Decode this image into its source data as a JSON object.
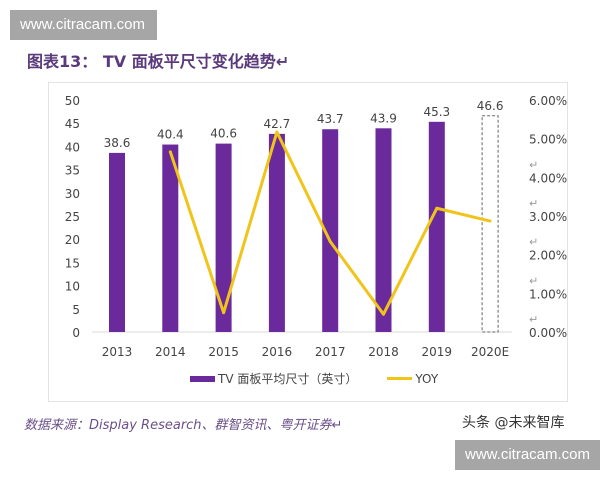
{
  "watermark": "www.citracam.com",
  "title": "图表13：  TV 面板平尺寸变化趋势↵",
  "source": "数据来源：Display Research、群智资讯、粤开证券↵",
  "brand": "头条 @未来智库",
  "colors": {
    "bar": "#6a2a9c",
    "line": "#f0c419",
    "axis": "#d9d9d9",
    "text": "#444444"
  },
  "chart_data": {
    "type": "bar+line",
    "categories": [
      "2013",
      "2014",
      "2015",
      "2016",
      "2017",
      "2018",
      "2019",
      "2020E"
    ],
    "series": [
      {
        "name": "TV 面板平均尺寸（英寸）",
        "type": "bar",
        "axis": "left",
        "values": [
          38.6,
          40.4,
          40.6,
          42.7,
          43.7,
          43.9,
          45.3,
          46.6
        ],
        "labels": [
          "38.6",
          "40.4",
          "40.6",
          "42.7",
          "43.7",
          "43.9",
          "45.3",
          "46.6"
        ],
        "forecast_last": true
      },
      {
        "name": "YOY",
        "type": "line",
        "axis": "right",
        "values": [
          null,
          4.66,
          0.5,
          5.17,
          2.34,
          0.46,
          3.2,
          2.87
        ]
      }
    ],
    "left_axis": {
      "ylim": [
        0,
        50
      ],
      "ticks": [
        "0",
        "5",
        "10",
        "15",
        "20",
        "25",
        "30",
        "35",
        "40",
        "45",
        "50"
      ]
    },
    "right_axis": {
      "ylim": [
        0,
        6
      ],
      "ticks": [
        "0.00%",
        "1.00%",
        "2.00%",
        "3.00%",
        "4.00%",
        "5.00%",
        "6.00%"
      ]
    },
    "legend": "bottom",
    "grid": false
  }
}
